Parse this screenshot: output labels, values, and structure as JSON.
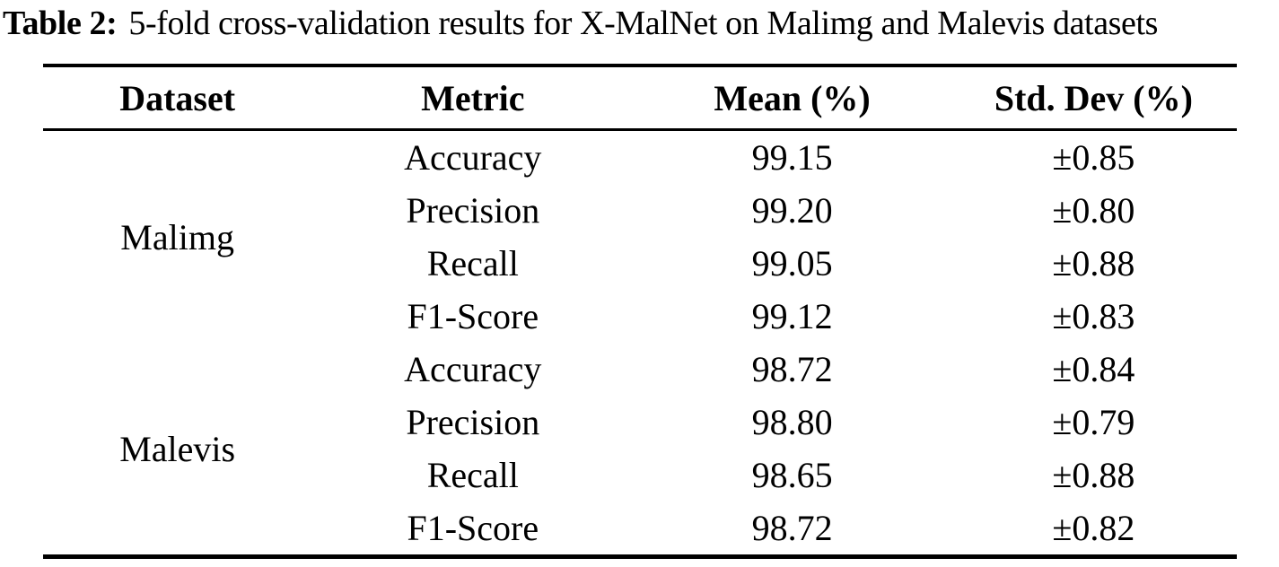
{
  "caption": {
    "label": "Table 2:",
    "text": "5-fold cross-validation results for X-MalNet on Malimg and Malevis datasets"
  },
  "table": {
    "columns": [
      "Dataset",
      "Metric",
      "Mean (%)",
      "Std. Dev (%)"
    ],
    "groups": [
      {
        "dataset": "Malimg",
        "rows": [
          {
            "metric": "Accuracy",
            "mean": "99.15",
            "std": "±0.85"
          },
          {
            "metric": "Precision",
            "mean": "99.20",
            "std": "±0.80"
          },
          {
            "metric": "Recall",
            "mean": "99.05",
            "std": "±0.88"
          },
          {
            "metric": "F1-Score",
            "mean": "99.12",
            "std": "±0.83"
          }
        ]
      },
      {
        "dataset": "Malevis",
        "rows": [
          {
            "metric": "Accuracy",
            "mean": "98.72",
            "std": "±0.84"
          },
          {
            "metric": "Precision",
            "mean": "98.80",
            "std": "±0.79"
          },
          {
            "metric": "Recall",
            "mean": "98.65",
            "std": "±0.88"
          },
          {
            "metric": "F1-Score",
            "mean": "98.72",
            "std": "±0.82"
          }
        ]
      }
    ]
  },
  "colors": {
    "text": "#000000",
    "background": "#ffffff",
    "rule": "#000000"
  }
}
